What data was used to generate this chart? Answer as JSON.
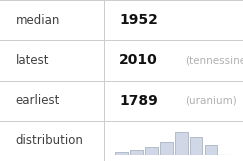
{
  "rows": [
    {
      "label": "median",
      "value": "1952",
      "note": ""
    },
    {
      "label": "latest",
      "value": "2010",
      "note": "(tennessine)"
    },
    {
      "label": "earliest",
      "value": "1789",
      "note": "(uranium)"
    },
    {
      "label": "distribution",
      "value": "",
      "note": ""
    }
  ],
  "hist_bars": [
    1,
    2,
    3,
    5,
    9,
    7,
    4,
    0
  ],
  "bar_color": "#d0d8e8",
  "bar_edge_color": "#a0a8b8",
  "bg_color": "#ffffff",
  "label_color": "#404040",
  "value_color": "#111111",
  "note_color": "#b0b0b0",
  "grid_line_color": "#cccccc",
  "value_fontsize": 10,
  "label_fontsize": 8.5,
  "note_fontsize": 7.5,
  "col_split": 0.43,
  "fig_width": 2.43,
  "fig_height": 1.61,
  "dpi": 100
}
